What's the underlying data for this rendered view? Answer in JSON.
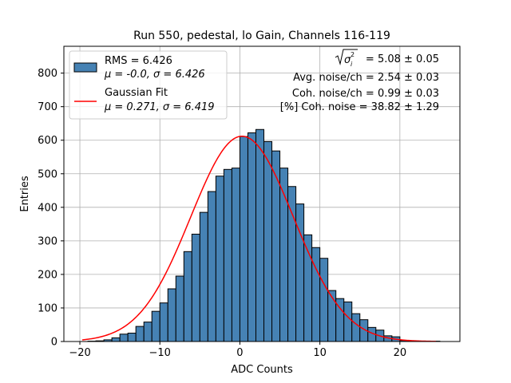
{
  "chart_data": {
    "type": "bar",
    "title": "Run 550, pedestal, lo Gain, Channels 116-119",
    "xlabel": "ADC Counts",
    "ylabel": "Entries",
    "xlim": [
      -22,
      27.5
    ],
    "ylim": [
      0,
      880
    ],
    "xticks": [
      -20,
      -10,
      0,
      10,
      20
    ],
    "yticks": [
      0,
      100,
      200,
      300,
      400,
      500,
      600,
      700,
      800
    ],
    "grid": true,
    "legend_position": "upper-left",
    "bin_width": 1,
    "histogram": {
      "bin_starts": [
        -19,
        -18,
        -17,
        -16,
        -15,
        -14,
        -13,
        -12,
        -11,
        -10,
        -9,
        -8,
        -7,
        -6,
        -5,
        -4,
        -3,
        -2,
        -1,
        0,
        1,
        2,
        3,
        4,
        5,
        6,
        7,
        8,
        9,
        10,
        11,
        12,
        13,
        14,
        15,
        16,
        17,
        18,
        19,
        20,
        21,
        22,
        23,
        24
      ],
      "counts": [
        1,
        2,
        5,
        11,
        22,
        25,
        45,
        58,
        90,
        115,
        157,
        195,
        268,
        320,
        385,
        447,
        493,
        513,
        517,
        611,
        622,
        632,
        596,
        568,
        517,
        462,
        410,
        318,
        280,
        248,
        152,
        128,
        118,
        83,
        65,
        42,
        34,
        17,
        14,
        3,
        2,
        1,
        1,
        1
      ],
      "color": "#4682b4",
      "edgecolor": "#000000",
      "legend_label_1": "RMS = 6.426",
      "legend_label_2": "μ = -0.0, σ = 6.426"
    },
    "gaussian_fit": {
      "mu": 0.271,
      "sigma": 6.419,
      "amplitude": 612,
      "x_range": [
        -19.7,
        24.5
      ],
      "color": "#ff0000",
      "legend_label_1": "Gaussian Fit",
      "legend_label_2": "μ = 0.271, σ = 6.419"
    },
    "annotations": {
      "sigma_total_value": "= 5.08 ± 0.05",
      "avg_noise": "Avg. noise/ch = 2.54 ± 0.03",
      "coh_noise": "Coh. noise/ch = 0.99 ± 0.03",
      "coh_noise_percent": "[%] Coh. noise = 38.82 ± 1.29"
    }
  }
}
